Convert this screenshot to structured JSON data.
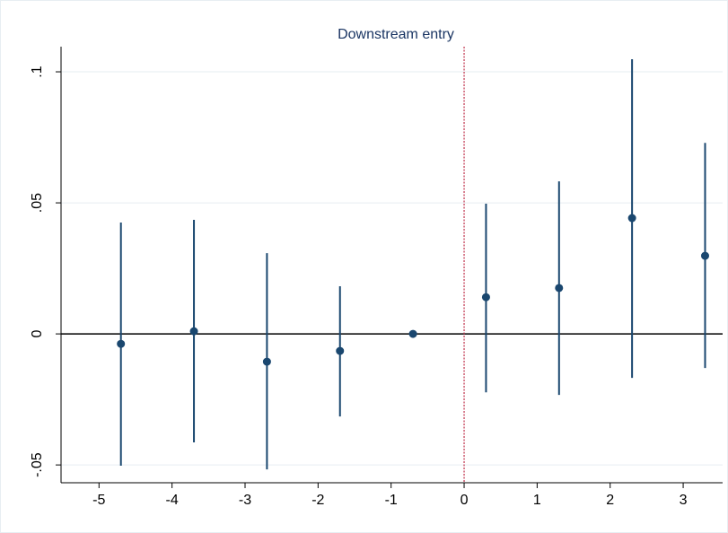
{
  "chart_data": {
    "type": "scatter",
    "title": "Downstream entry",
    "x": [
      -4.7,
      -3.7,
      -2.7,
      -1.7,
      -0.7,
      0.3,
      1.3,
      2.3,
      3.3
    ],
    "series": [
      {
        "color": "#1a476f",
        "values": [
          -0.0038,
          0.001,
          -0.0106,
          -0.0065,
          0,
          0.014,
          0.0175,
          0.0442,
          0.0298
        ],
        "ci_lower": [
          -0.0503,
          -0.0414,
          -0.0517,
          -0.0315,
          null,
          -0.0223,
          -0.0233,
          -0.0168,
          -0.013
        ],
        "ci_upper": [
          0.0425,
          0.0435,
          0.0308,
          0.0182,
          null,
          0.0497,
          0.0582,
          0.1048,
          0.0729
        ]
      }
    ],
    "xlim": [
      -5.52,
      3.54
    ],
    "xticks": [
      -5,
      -4,
      -3,
      -2,
      -1,
      0,
      1,
      2,
      3
    ],
    "ylim": [
      -0.0568,
      0.1096
    ],
    "yticks": [
      {
        "value": -0.05,
        "label": "-.05"
      },
      {
        "value": 0,
        "label": "0"
      },
      {
        "value": 0.05,
        "label": ".05"
      },
      {
        "value": 0.1,
        "label": ".1"
      }
    ],
    "grid": true,
    "reference_x": 0,
    "reference_x_color": "#c0304a",
    "reference_y": 0
  }
}
